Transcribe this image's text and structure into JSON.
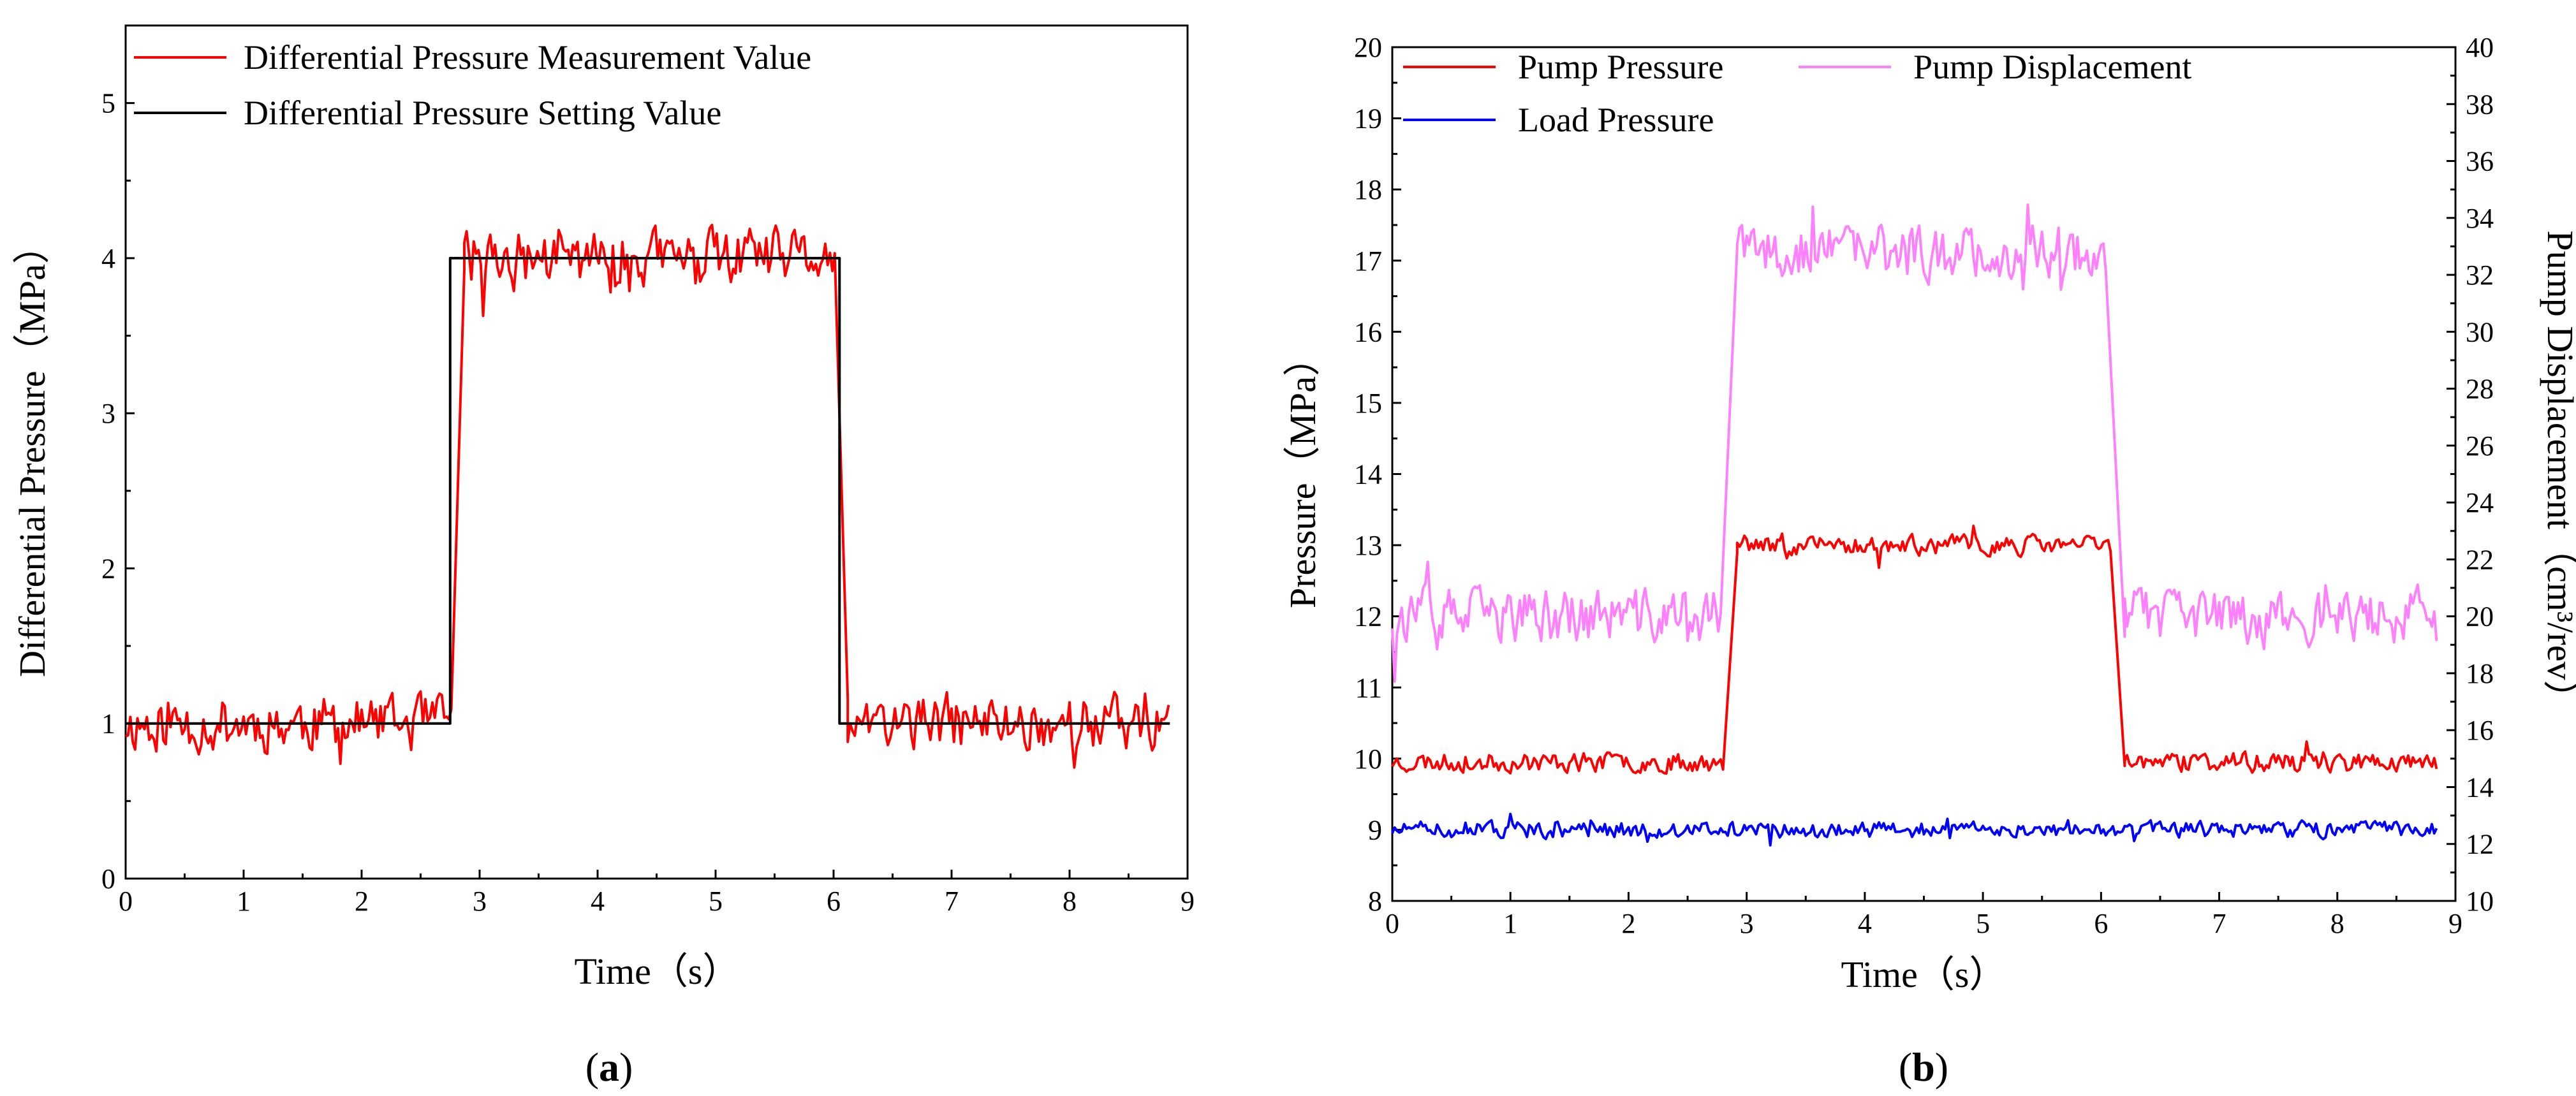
{
  "chart_data": [
    {
      "type": "line",
      "panel_label_prefix": "(",
      "panel_label_letter": "a",
      "panel_label_suffix": ")",
      "xlabel": "Time（s）",
      "ylabel": "Differential Pressure（MPa）",
      "xlim": [
        0,
        9
      ],
      "ylim": [
        0,
        5.5
      ],
      "xticks": [
        "0",
        "1",
        "2",
        "3",
        "4",
        "5",
        "6",
        "7",
        "8",
        "9"
      ],
      "yticks": [
        "0",
        "1",
        "2",
        "3",
        "4",
        "5"
      ],
      "legend_position": "top-left",
      "series": [
        {
          "name": "Differential Pressure Measurement Value",
          "color": "#ff0000",
          "kind": "noisy_step",
          "segments": [
            [
              0,
              2.77,
              1.0
            ],
            [
              2.87,
              6.02,
              4.0
            ],
            [
              6.12,
              8.85,
              1.0
            ]
          ],
          "noise_amplitude": 0.16,
          "step": 0.02,
          "seed": 11
        },
        {
          "name": "Differential Pressure Setting Value",
          "color": "#000000",
          "kind": "step",
          "points": [
            [
              0,
              1
            ],
            [
              2.75,
              1
            ],
            [
              2.75,
              4
            ],
            [
              6.05,
              4
            ],
            [
              6.05,
              1
            ],
            [
              8.85,
              1
            ]
          ]
        }
      ]
    },
    {
      "type": "line",
      "panel_label_prefix": "(",
      "panel_label_letter": "b",
      "panel_label_suffix": ")",
      "xlabel": "Time（s）",
      "ylabel": "Pressure（MPa）",
      "y2label": "Pump Displacement（cm³/rev）",
      "xlim": [
        0,
        9
      ],
      "ylim": [
        8,
        20
      ],
      "y2lim": [
        10,
        40
      ],
      "xticks": [
        "0",
        "1",
        "2",
        "3",
        "4",
        "5",
        "6",
        "7",
        "8",
        "9"
      ],
      "yticks": [
        "8",
        "9",
        "10",
        "11",
        "12",
        "13",
        "14",
        "15",
        "16",
        "17",
        "18",
        "19",
        "20"
      ],
      "y2ticks": [
        "10",
        "12",
        "14",
        "16",
        "18",
        "20",
        "22",
        "24",
        "26",
        "28",
        "30",
        "32",
        "34",
        "36",
        "38",
        "40"
      ],
      "legend_position": "top-left",
      "series": [
        {
          "name": "Pump Pressure",
          "color": "#ff0000",
          "axis": "left",
          "kind": "noisy_step",
          "segments": [
            [
              0,
              2.8,
              9.95
            ],
            [
              2.92,
              6.08,
              13.0
            ],
            [
              6.2,
              8.85,
              9.95
            ]
          ],
          "noise_amplitude": 0.12,
          "step": 0.02,
          "seed": 23
        },
        {
          "name": "Pump Displacement",
          "color": "#ff80ff",
          "axis": "right",
          "kind": "noisy_step",
          "segments": [
            [
              0,
              2.78,
              20.0
            ],
            [
              2.92,
              6.05,
              32.8
            ],
            [
              6.2,
              8.85,
              20.0
            ]
          ],
          "noise_amplitude": 0.85,
          "step": 0.02,
          "seed": 37
        },
        {
          "name": "Load Pressure",
          "color": "#0000ff",
          "axis": "left",
          "kind": "noisy_step",
          "segments": [
            [
              0,
              8.85,
              9.0
            ]
          ],
          "noise_amplitude": 0.1,
          "step": 0.02,
          "seed": 51
        }
      ]
    }
  ]
}
